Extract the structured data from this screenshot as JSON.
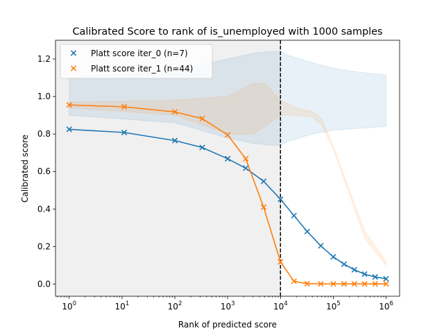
{
  "chart_data": {
    "type": "line",
    "title": "Calibrated Score to rank of is_unemployed with 1000 samples",
    "xlabel": "Rank of predicted score",
    "ylabel": "Calibrated score",
    "xscale": "log",
    "xlim": [
      0.55,
      1800000
    ],
    "ylim": [
      -0.065,
      1.3
    ],
    "x_ticks": [
      {
        "value": 1,
        "base": "10",
        "exp": "0"
      },
      {
        "value": 10,
        "base": "10",
        "exp": "1"
      },
      {
        "value": 100,
        "base": "10",
        "exp": "2"
      },
      {
        "value": 1000,
        "base": "10",
        "exp": "3"
      },
      {
        "value": 10000,
        "base": "10",
        "exp": "4"
      },
      {
        "value": 100000,
        "base": "10",
        "exp": "5"
      },
      {
        "value": 1000000,
        "base": "10",
        "exp": "6"
      }
    ],
    "y_ticks": [
      {
        "value": 0.0,
        "label": "0.0"
      },
      {
        "value": 0.2,
        "label": "0.2"
      },
      {
        "value": 0.4,
        "label": "0.4"
      },
      {
        "value": 0.6,
        "label": "0.6"
      },
      {
        "value": 0.8,
        "label": "0.8"
      },
      {
        "value": 1.0,
        "label": "1.0"
      },
      {
        "value": 1.2,
        "label": "1.2"
      }
    ],
    "grid": false,
    "legend_position": "top-left",
    "vline": {
      "x": 10000,
      "style": "dashed",
      "color": "#000000"
    },
    "shaded_region": {
      "x_end": 10000,
      "color": "#f0f0f0"
    },
    "series": [
      {
        "name": "Platt score iter_0 (n=7)",
        "color": "#1f77b4",
        "x": [
          1,
          11,
          100,
          330,
          1000,
          2200,
          4800,
          10000,
          18000,
          32000,
          58000,
          100000,
          160000,
          250000,
          390000,
          620000,
          1000000
        ],
        "y": [
          0.825,
          0.808,
          0.765,
          0.728,
          0.668,
          0.618,
          0.548,
          0.452,
          0.365,
          0.28,
          0.204,
          0.145,
          0.106,
          0.076,
          0.053,
          0.038,
          0.028
        ],
        "band": {
          "x": [
            1,
            100,
            1000,
            3000,
            7000,
            10000,
            14000,
            40000,
            100000,
            300000,
            1000000
          ],
          "lower": [
            0.9,
            0.86,
            0.78,
            0.75,
            0.74,
            0.74,
            0.76,
            0.8,
            0.82,
            0.83,
            0.84
          ],
          "upper": [
            1.1,
            1.14,
            1.2,
            1.23,
            1.24,
            1.24,
            1.22,
            1.18,
            1.15,
            1.13,
            1.115
          ]
        }
      },
      {
        "name": "Platt score iter_1 (n=44)",
        "color": "#ff7f0e",
        "x": [
          1,
          11,
          100,
          330,
          1000,
          2200,
          4800,
          10000,
          18000,
          32000,
          58000,
          100000,
          160000,
          250000,
          390000,
          620000,
          1000000
        ],
        "y": [
          0.955,
          0.945,
          0.918,
          0.882,
          0.795,
          0.668,
          0.41,
          0.118,
          0.015,
          0.002,
          0.001,
          0.001,
          0.001,
          0.001,
          0.001,
          0.001,
          0.001
        ],
        "band": {
          "x": [
            1,
            100,
            1000,
            3000,
            5000,
            10000,
            20000,
            40000,
            60000,
            100000,
            200000,
            400000,
            1000000
          ],
          "lower": [
            0.94,
            0.9,
            0.8,
            0.8,
            0.84,
            0.9,
            0.9,
            0.89,
            0.85,
            0.72,
            0.48,
            0.24,
            0.1
          ],
          "upper": [
            0.97,
            0.98,
            1.0,
            1.07,
            1.07,
            0.98,
            0.94,
            0.92,
            0.88,
            0.74,
            0.5,
            0.28,
            0.12
          ]
        }
      }
    ]
  }
}
